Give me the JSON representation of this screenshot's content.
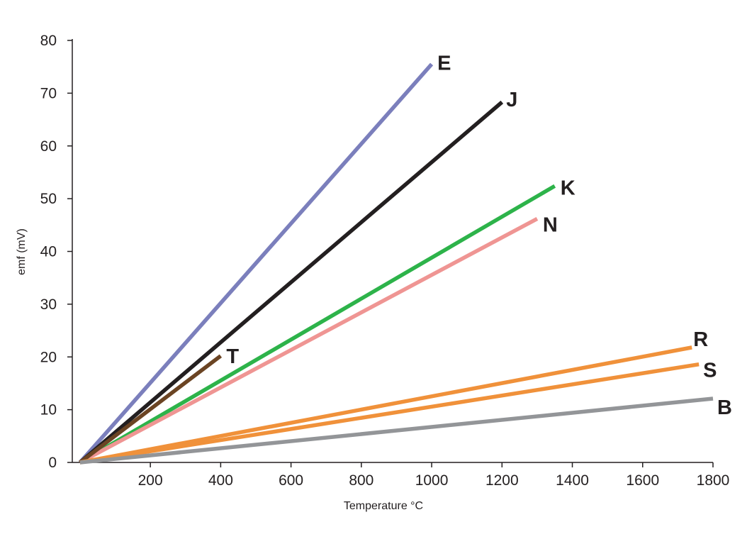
{
  "chart_data": {
    "type": "line",
    "title": "",
    "xlabel": "Temperature °C",
    "ylabel": "emf (mV)",
    "xlim": [
      -22,
      1800
    ],
    "ylim": [
      0,
      80
    ],
    "x_ticks": [
      200,
      400,
      600,
      800,
      1000,
      1200,
      1400,
      1600,
      1800
    ],
    "y_ticks": [
      0,
      10,
      20,
      30,
      40,
      50,
      60,
      70,
      80
    ],
    "grid": false,
    "legend": "inline labels at line ends",
    "series": [
      {
        "name": "E",
        "color": "#7b7fbc",
        "x": [
          0,
          1000
        ],
        "y": [
          0,
          75.5
        ]
      },
      {
        "name": "J",
        "color": "#231f20",
        "x": [
          0,
          1200
        ],
        "y": [
          0,
          68.3
        ]
      },
      {
        "name": "K",
        "color": "#2db34a",
        "x": [
          0,
          1350
        ],
        "y": [
          0,
          52.4
        ]
      },
      {
        "name": "N",
        "color": "#ef9593",
        "x": [
          0,
          1300
        ],
        "y": [
          0,
          46.2
        ]
      },
      {
        "name": "T",
        "color": "#6b4423",
        "x": [
          0,
          400
        ],
        "y": [
          0,
          20.2
        ]
      },
      {
        "name": "R",
        "color": "#f0913a",
        "x": [
          0,
          1740
        ],
        "y": [
          0,
          21.8
        ]
      },
      {
        "name": "S",
        "color": "#f0913a",
        "x": [
          0,
          1760
        ],
        "y": [
          0,
          18.6
        ]
      },
      {
        "name": "B",
        "color": "#939598",
        "x": [
          0,
          1800
        ],
        "y": [
          0,
          12.1
        ]
      }
    ]
  }
}
